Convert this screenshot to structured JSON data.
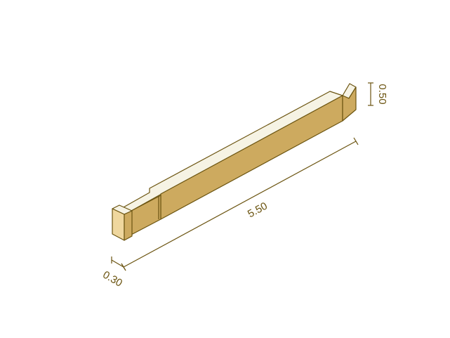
{
  "dimensions": {
    "height": "0.50",
    "length": "5.50",
    "width": "0.30"
  },
  "colors": {
    "outline": "#6b5410",
    "top_face": "#f6f3e4",
    "front_face": "#cdaa5f",
    "end_face": "#efd79e",
    "dimension_line": "#6b5410"
  }
}
